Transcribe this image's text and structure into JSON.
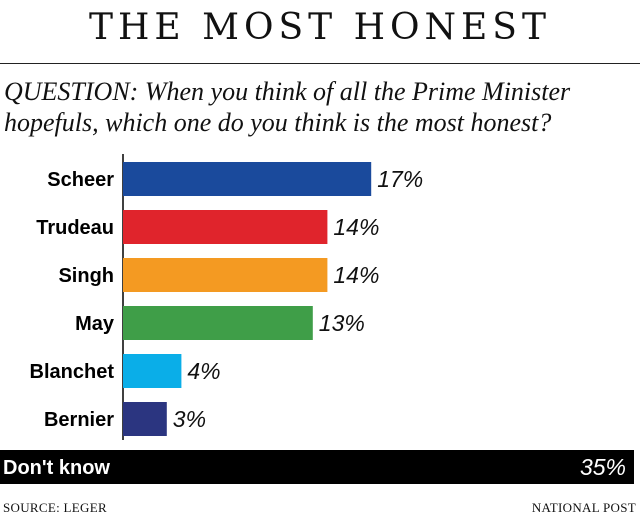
{
  "title": "THE MOST HONEST",
  "question": "QUESTION: When you think of all the Prime Minister hopefuls, which one do you think is the most honest?",
  "source": "SOURCE: LEGER",
  "credit": "NATIONAL POST",
  "chart_data": {
    "type": "bar",
    "orientation": "horizontal",
    "title": "THE MOST HONEST",
    "categories": [
      "Scheer",
      "Trudeau",
      "Singh",
      "May",
      "Blanchet",
      "Bernier",
      "Don't know"
    ],
    "values": [
      17,
      14,
      14,
      13,
      4,
      3,
      35
    ],
    "value_labels": [
      "17%",
      "14%",
      "14%",
      "13%",
      "4%",
      "3%",
      "35%"
    ],
    "colors": [
      "#1a4a9c",
      "#e0242c",
      "#f49a22",
      "#3f9e48",
      "#0aaee8",
      "#2b3580",
      "#000000"
    ],
    "value_unit": "%",
    "xlim": [
      0,
      35
    ],
    "grid": false,
    "legend": "none"
  }
}
